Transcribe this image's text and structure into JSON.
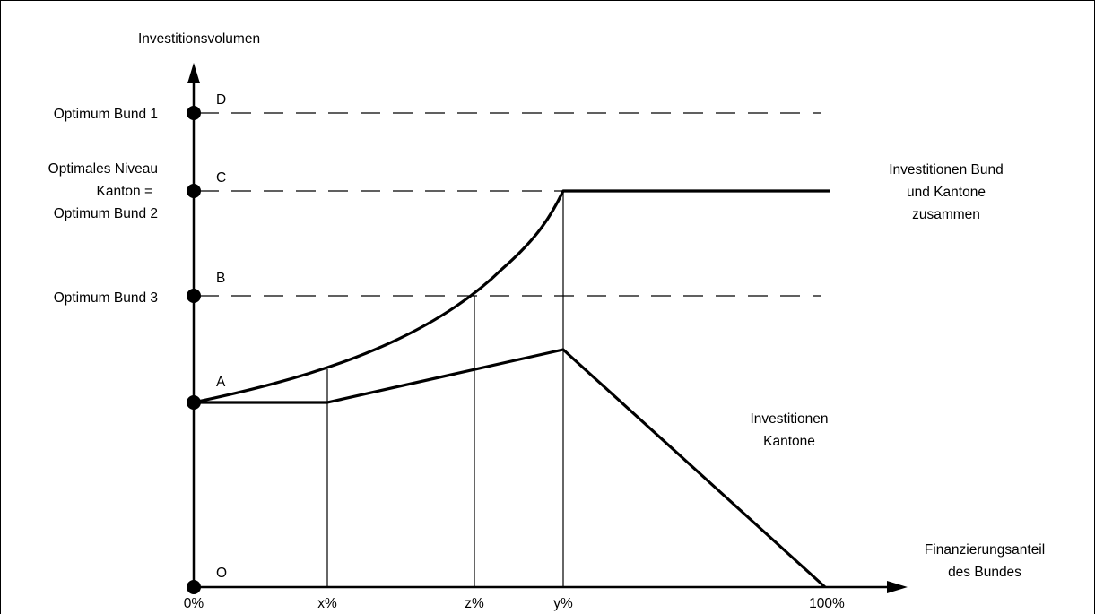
{
  "diagram": {
    "y_axis_label": "Investitionsvolumen",
    "x_axis_label_line1": "Finanzierungsanteil",
    "x_axis_label_line2": "des Bundes",
    "levels": {
      "D": "Optimum Bund 1",
      "C_line1": "Optimales Niveau",
      "C_line2": "Kanton =",
      "C_line3": "Optimum Bund 2",
      "B": "Optimum Bund 3"
    },
    "points": {
      "D": "D",
      "C": "C",
      "B": "B",
      "A": "A",
      "O": "O"
    },
    "x_ticks": {
      "zero": "0%",
      "x": "x%",
      "z": "z%",
      "y": "y%",
      "hundred": "100%"
    },
    "curves": {
      "combined_line1": "Investitionen Bund",
      "combined_line2": "und Kantone",
      "combined_line3": "zusammen",
      "cantons_line1": "Investitionen",
      "cantons_line2": "Kantone"
    }
  }
}
